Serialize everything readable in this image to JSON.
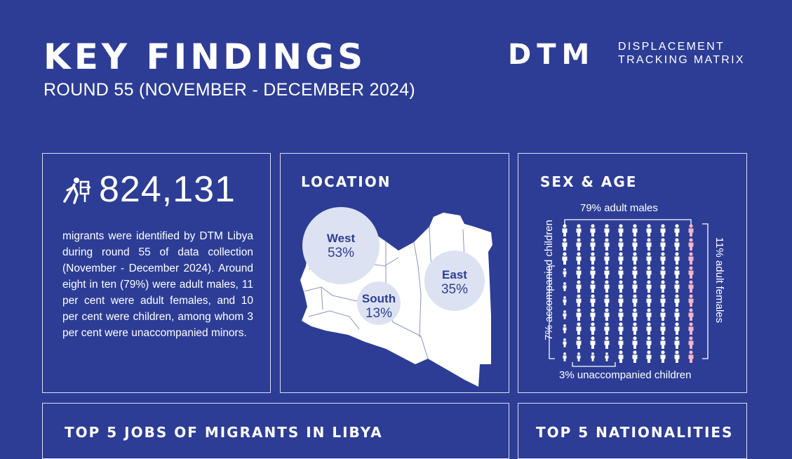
{
  "header": {
    "title": "KEY FINDINGS",
    "subtitle": "ROUND 55 (NOVEMBER - DECEMBER 2024)",
    "logo": {
      "acronym": "DTM",
      "line1": "DISPLACEMENT",
      "line2": "TRACKING MATRIX"
    }
  },
  "total": {
    "icon": "migrant-walking-icon",
    "number": "824,131",
    "description": "migrants were identified by DTM Libya during round 55 of data collection (November - December 2024). Around eight in ten (79%) were adult males, 11 per cent were adult females, and 10 per cent were children, among whom 3 per cent were unaccompanied minors."
  },
  "location": {
    "heading": "LOCATION",
    "map_icon": "libya-map",
    "regions": [
      {
        "name": "West",
        "percent": "53%",
        "share": 53
      },
      {
        "name": "South",
        "percent": "13%",
        "share": 13
      },
      {
        "name": "East",
        "percent": "35%",
        "share": 35
      }
    ],
    "colors": {
      "bubble": "#dde2f2",
      "map": "#ffffff",
      "borders": "#8a93bf"
    }
  },
  "sex_age": {
    "heading": "SEX & AGE",
    "labels": {
      "adult_males": "79% adult males",
      "adult_females": "11% adult females",
      "accompanied_children": "7% accompanied children",
      "unaccompanied_children": "3% unaccompanied children"
    },
    "icon_grid": {
      "columns": 10,
      "rows": 10,
      "male_icon": "male-person-icon",
      "female_icon": "female-person-icon"
    },
    "colors": {
      "male": "#ffffff",
      "female": "#f4b6c8"
    }
  },
  "jobs": {
    "heading": "TOP 5 JOBS OF MIGRANTS IN LIBYA"
  },
  "nationalities": {
    "heading": "TOP 5 NATIONALITIES"
  }
}
